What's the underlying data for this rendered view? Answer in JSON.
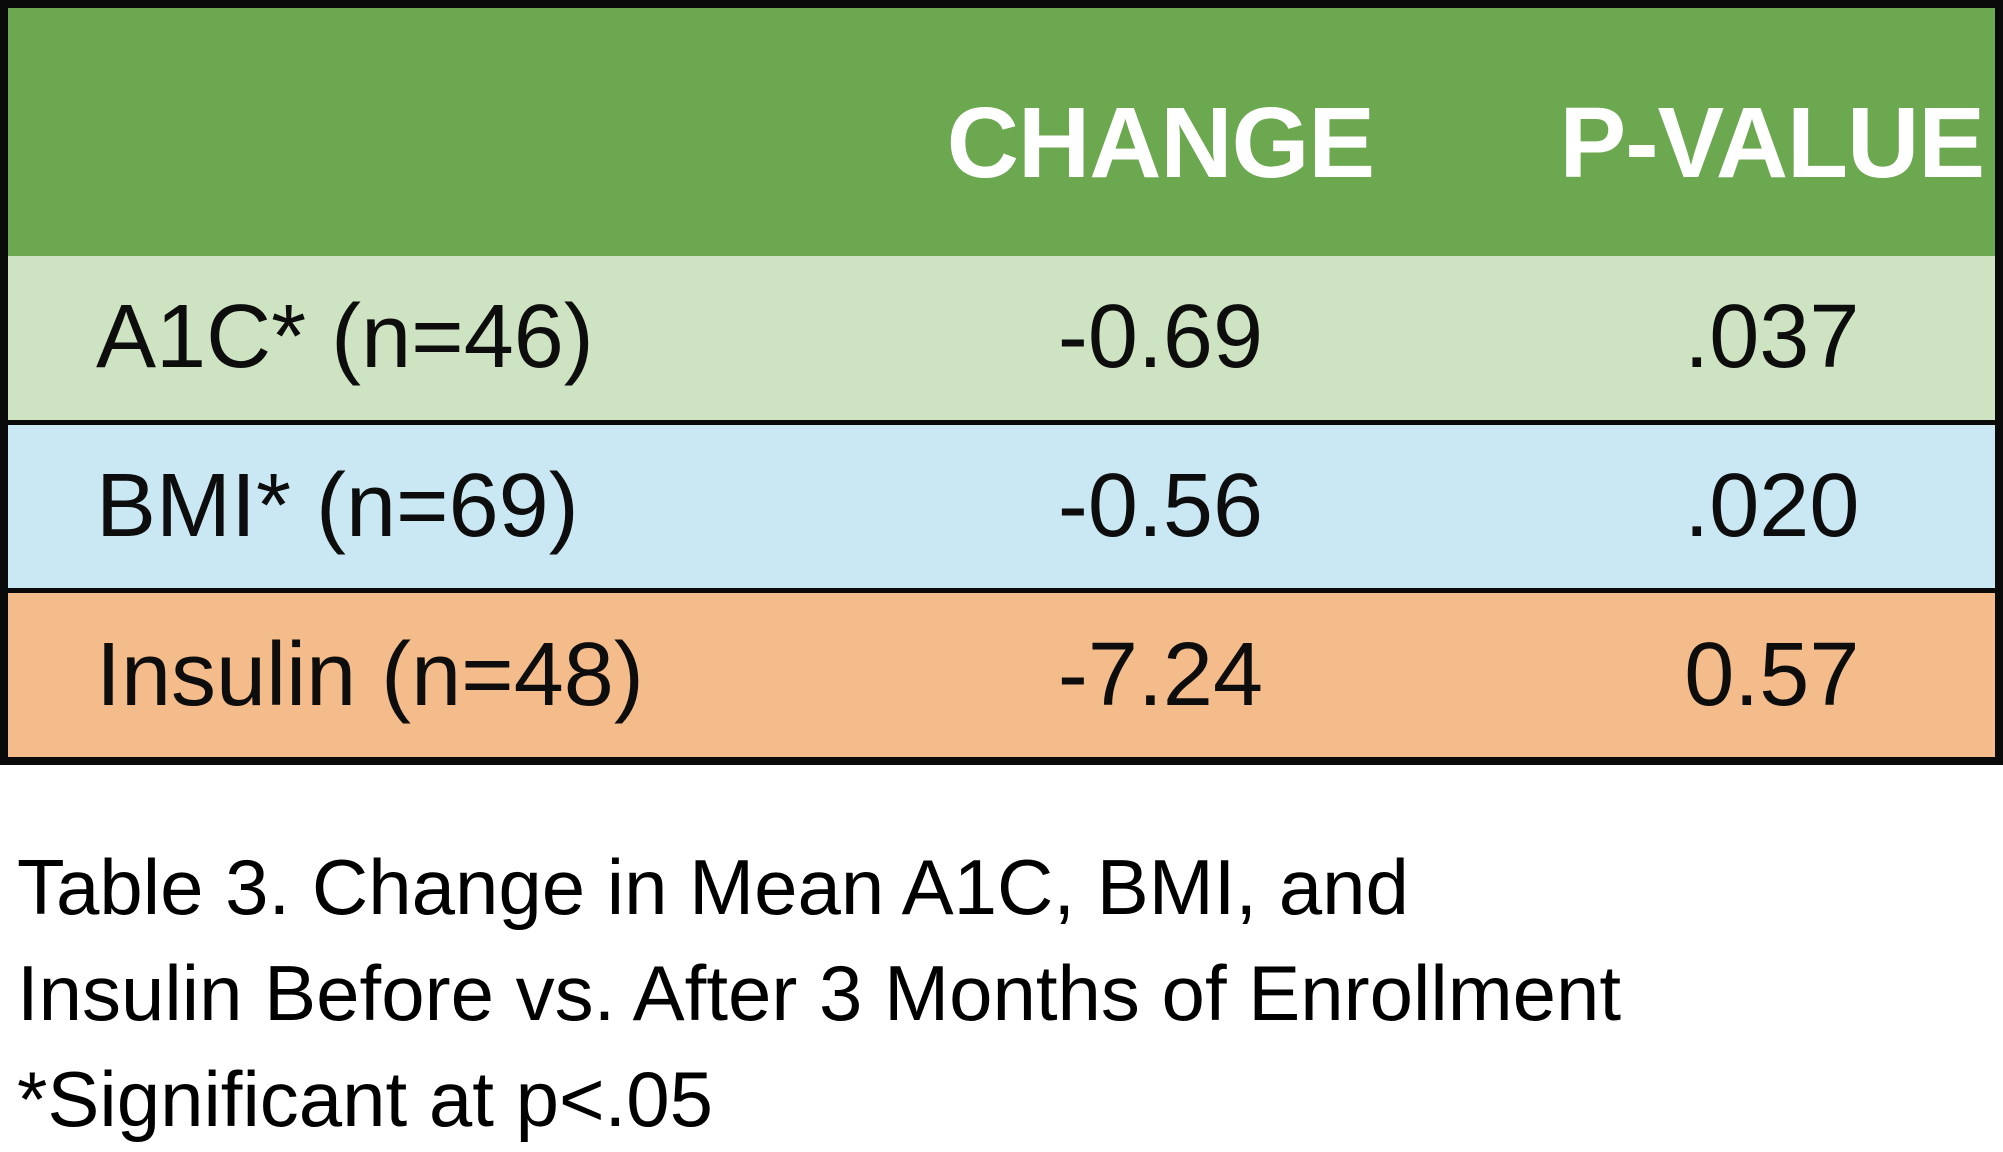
{
  "table": {
    "header": {
      "change_label": "CHANGE",
      "p_value_label": "P-VALUE"
    },
    "rows": [
      {
        "label": "A1C* (n=46)",
        "change": "-0.69",
        "p_value": ".037"
      },
      {
        "label": "BMI* (n=69)",
        "change": "-0.56",
        "p_value": ".020"
      },
      {
        "label": "Insulin (n=48)",
        "change": "-7.24",
        "p_value": "0.57"
      }
    ]
  },
  "caption": {
    "line1": "Table 3. Change in Mean A1C, BMI, and",
    "line2": "Insulin Before vs. After 3 Months of Enrollment",
    "line3": "*Significant at p<.05"
  },
  "colors": {
    "header_bg": "#6CA84F",
    "header_text": "#FFFFFF",
    "row_a1c_bg": "#CDE3C1",
    "row_bmi_bg": "#C9E8F3",
    "row_insulin_bg": "#F4BB8B",
    "border": "#0A0A0A",
    "body_text": "#0D0D0D"
  },
  "chart_data": {
    "type": "table",
    "title": "Table 3. Change in Mean A1C, BMI, and Insulin Before vs. After 3 Months of Enrollment",
    "columns": [
      "",
      "CHANGE",
      "P-VALUE"
    ],
    "rows": [
      {
        "label": "A1C* (n=46)",
        "n": 46,
        "change": -0.69,
        "p_value": 0.037,
        "significant": true
      },
      {
        "label": "BMI* (n=69)",
        "n": 69,
        "change": -0.56,
        "p_value": 0.02,
        "significant": true
      },
      {
        "label": "Insulin (n=48)",
        "n": 48,
        "change": -7.24,
        "p_value": 0.57,
        "significant": false
      }
    ],
    "footnote": "*Significant at p<.05",
    "layout": {
      "header_style": "green-banner",
      "row_colors": [
        "#CDE3C1",
        "#C9E8F3",
        "#F4BB8B"
      ]
    }
  }
}
